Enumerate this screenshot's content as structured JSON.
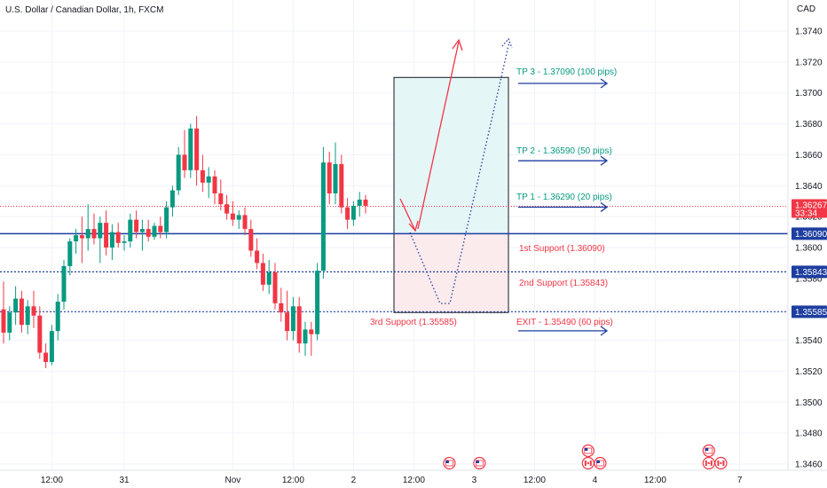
{
  "header": {
    "title": "U.S. Dollar / Canadian Dollar, 1h, FXCM",
    "currency": "CAD"
  },
  "colors": {
    "bull": "#089981",
    "bear": "#f23645",
    "blue": "#1e3ea0",
    "tp": "#089981",
    "support": "#f23645",
    "box_up": "#e5f6f7",
    "box_down": "#fcebec",
    "grid": "#f0f3fa"
  },
  "chart_data": {
    "type": "candlestick",
    "symbol": "USDCAD",
    "timeframe": "1h",
    "ylim": [
      1.346,
      1.3745
    ],
    "y_ticks": [
      1.374,
      1.372,
      1.37,
      1.368,
      1.366,
      1.364,
      1.362,
      1.36,
      1.358,
      1.356,
      1.354,
      1.352,
      1.35,
      1.348,
      1.346
    ],
    "x_ticks": [
      {
        "label": "12:00",
        "bar": 8
      },
      {
        "label": "31",
        "bar": 20
      },
      {
        "label": "Nov",
        "bar": 38
      },
      {
        "label": "12:00",
        "bar": 48
      },
      {
        "label": "2",
        "bar": 58
      },
      {
        "label": "12:00",
        "bar": 68
      },
      {
        "label": "3",
        "bar": 78
      },
      {
        "label": "12:00",
        "bar": 88
      },
      {
        "label": "4",
        "bar": 98
      },
      {
        "label": "12:00",
        "bar": 108
      },
      {
        "label": "7",
        "bar": 122
      }
    ],
    "candles": [
      {
        "o": 1.356,
        "h": 1.3578,
        "l": 1.3538,
        "c": 1.3545
      },
      {
        "o": 1.3545,
        "h": 1.3562,
        "l": 1.354,
        "c": 1.3558
      },
      {
        "o": 1.3558,
        "h": 1.3575,
        "l": 1.355,
        "c": 1.3567
      },
      {
        "o": 1.3567,
        "h": 1.3572,
        "l": 1.3545,
        "c": 1.355
      },
      {
        "o": 1.355,
        "h": 1.3566,
        "l": 1.3544,
        "c": 1.3562
      },
      {
        "o": 1.3562,
        "h": 1.3572,
        "l": 1.3548,
        "c": 1.3556
      },
      {
        "o": 1.3556,
        "h": 1.3562,
        "l": 1.3528,
        "c": 1.3532
      },
      {
        "o": 1.3532,
        "h": 1.3538,
        "l": 1.3522,
        "c": 1.3526
      },
      {
        "o": 1.3526,
        "h": 1.355,
        "l": 1.3524,
        "c": 1.3546
      },
      {
        "o": 1.3546,
        "h": 1.357,
        "l": 1.354,
        "c": 1.3565
      },
      {
        "o": 1.3565,
        "h": 1.3592,
        "l": 1.356,
        "c": 1.3588
      },
      {
        "o": 1.3588,
        "h": 1.3606,
        "l": 1.3582,
        "c": 1.3604
      },
      {
        "o": 1.3604,
        "h": 1.3612,
        "l": 1.3596,
        "c": 1.3608
      },
      {
        "o": 1.3608,
        "h": 1.362,
        "l": 1.359,
        "c": 1.3606
      },
      {
        "o": 1.3606,
        "h": 1.3628,
        "l": 1.3598,
        "c": 1.3612
      },
      {
        "o": 1.3612,
        "h": 1.3622,
        "l": 1.3602,
        "c": 1.3606
      },
      {
        "o": 1.3606,
        "h": 1.362,
        "l": 1.359,
        "c": 1.3616
      },
      {
        "o": 1.3616,
        "h": 1.3624,
        "l": 1.3595,
        "c": 1.36
      },
      {
        "o": 1.36,
        "h": 1.3615,
        "l": 1.3592,
        "c": 1.361
      },
      {
        "o": 1.361,
        "h": 1.3616,
        "l": 1.36,
        "c": 1.3603
      },
      {
        "o": 1.3603,
        "h": 1.3608,
        "l": 1.3598,
        "c": 1.3604
      },
      {
        "o": 1.3604,
        "h": 1.3622,
        "l": 1.36,
        "c": 1.3618
      },
      {
        "o": 1.3618,
        "h": 1.3624,
        "l": 1.3606,
        "c": 1.361
      },
      {
        "o": 1.361,
        "h": 1.3618,
        "l": 1.3598,
        "c": 1.3612
      },
      {
        "o": 1.3612,
        "h": 1.3618,
        "l": 1.3604,
        "c": 1.3607
      },
      {
        "o": 1.3607,
        "h": 1.3616,
        "l": 1.3605,
        "c": 1.3614
      },
      {
        "o": 1.3614,
        "h": 1.362,
        "l": 1.3606,
        "c": 1.361
      },
      {
        "o": 1.361,
        "h": 1.363,
        "l": 1.3606,
        "c": 1.3626
      },
      {
        "o": 1.3626,
        "h": 1.364,
        "l": 1.362,
        "c": 1.3637
      },
      {
        "o": 1.3637,
        "h": 1.3665,
        "l": 1.3634,
        "c": 1.366
      },
      {
        "o": 1.366,
        "h": 1.3676,
        "l": 1.3645,
        "c": 1.365
      },
      {
        "o": 1.365,
        "h": 1.368,
        "l": 1.3645,
        "c": 1.3677
      },
      {
        "o": 1.3677,
        "h": 1.3685,
        "l": 1.364,
        "c": 1.365
      },
      {
        "o": 1.365,
        "h": 1.366,
        "l": 1.3636,
        "c": 1.3642
      },
      {
        "o": 1.3642,
        "h": 1.3652,
        "l": 1.3632,
        "c": 1.3646
      },
      {
        "o": 1.3646,
        "h": 1.365,
        "l": 1.3628,
        "c": 1.3635
      },
      {
        "o": 1.3635,
        "h": 1.3644,
        "l": 1.3624,
        "c": 1.3628
      },
      {
        "o": 1.3628,
        "h": 1.3634,
        "l": 1.3618,
        "c": 1.3622
      },
      {
        "o": 1.3622,
        "h": 1.363,
        "l": 1.3614,
        "c": 1.3618
      },
      {
        "o": 1.3618,
        "h": 1.3624,
        "l": 1.3612,
        "c": 1.3621
      },
      {
        "o": 1.3621,
        "h": 1.3626,
        "l": 1.3608,
        "c": 1.3612
      },
      {
        "o": 1.3612,
        "h": 1.3618,
        "l": 1.3594,
        "c": 1.3598
      },
      {
        "o": 1.3598,
        "h": 1.3606,
        "l": 1.3586,
        "c": 1.359
      },
      {
        "o": 1.359,
        "h": 1.3596,
        "l": 1.3572,
        "c": 1.3576
      },
      {
        "o": 1.3576,
        "h": 1.3592,
        "l": 1.357,
        "c": 1.3584
      },
      {
        "o": 1.3584,
        "h": 1.359,
        "l": 1.356,
        "c": 1.3564
      },
      {
        "o": 1.3564,
        "h": 1.3574,
        "l": 1.3552,
        "c": 1.3558
      },
      {
        "o": 1.3558,
        "h": 1.3572,
        "l": 1.354,
        "c": 1.3546
      },
      {
        "o": 1.3546,
        "h": 1.3568,
        "l": 1.354,
        "c": 1.3562
      },
      {
        "o": 1.3562,
        "h": 1.3568,
        "l": 1.3532,
        "c": 1.3538
      },
      {
        "o": 1.3538,
        "h": 1.3552,
        "l": 1.353,
        "c": 1.3547
      },
      {
        "o": 1.3547,
        "h": 1.3552,
        "l": 1.353,
        "c": 1.3544
      },
      {
        "o": 1.3544,
        "h": 1.359,
        "l": 1.354,
        "c": 1.3585
      },
      {
        "o": 1.3585,
        "h": 1.3665,
        "l": 1.358,
        "c": 1.3655
      },
      {
        "o": 1.3655,
        "h": 1.3662,
        "l": 1.3628,
        "c": 1.3635
      },
      {
        "o": 1.3635,
        "h": 1.3668,
        "l": 1.3628,
        "c": 1.3654
      },
      {
        "o": 1.3654,
        "h": 1.366,
        "l": 1.3622,
        "c": 1.3626
      },
      {
        "o": 1.3626,
        "h": 1.3632,
        "l": 1.3612,
        "c": 1.3618
      },
      {
        "o": 1.3618,
        "h": 1.363,
        "l": 1.3614,
        "c": 1.3627
      },
      {
        "o": 1.3627,
        "h": 1.3636,
        "l": 1.362,
        "c": 1.3631
      },
      {
        "o": 1.3631,
        "h": 1.3634,
        "l": 1.3622,
        "c": 1.3627
      }
    ],
    "last_price": {
      "value": "1.36267",
      "countdown": "33:34"
    },
    "price_tags": [
      {
        "value": "1.36090",
        "price": 1.3609,
        "style": "solid"
      },
      {
        "value": "1.35843",
        "price": 1.35843,
        "style": "dotted"
      },
      {
        "value": "1.35585",
        "price": 1.35585,
        "style": "dotted"
      }
    ],
    "annotations": {
      "tp3": "TP 3 - 1.37090 (100 pips)",
      "tp2": "TP 2 - 1.36590 (50 pips)",
      "tp1": "TP 1 - 1.36290 (20 pips)",
      "support1": "1st Support (1.36090)",
      "support2": "2nd Support (1.35843)",
      "support3": "3rd Support (1.35585)",
      "exit": "EXIT - 1.35490 (60 pips)"
    },
    "levels": {
      "tp3": 1.3709,
      "tp2": 1.3659,
      "tp1": 1.3629,
      "support1": 1.3609,
      "support2": 1.35843,
      "support3": 1.35585,
      "exit": 1.3549
    },
    "position_box": {
      "top": 1.371,
      "mid": 1.3609,
      "bottom": 1.3558
    },
    "events": [
      {
        "bar": 73,
        "flags": [
          "us"
        ]
      },
      {
        "bar": 78,
        "flags": [
          "us"
        ]
      },
      {
        "bar": 96,
        "flags": [
          "us",
          "ca"
        ]
      },
      {
        "bar": 98,
        "flags": [
          "us"
        ]
      },
      {
        "bar": 116,
        "flags": [
          "us",
          "ca"
        ]
      },
      {
        "bar": 118,
        "flags": [
          "ca"
        ]
      }
    ]
  }
}
